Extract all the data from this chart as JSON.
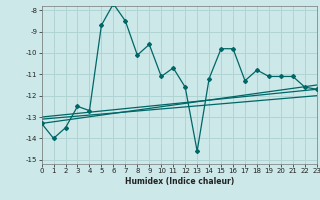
{
  "xlabel": "Humidex (Indice chaleur)",
  "xlim": [
    0,
    23
  ],
  "ylim": [
    -15.2,
    -7.8
  ],
  "yticks": [
    -15,
    -14,
    -13,
    -12,
    -11,
    -10,
    -9,
    -8
  ],
  "xticks": [
    0,
    1,
    2,
    3,
    4,
    5,
    6,
    7,
    8,
    9,
    10,
    11,
    12,
    13,
    14,
    15,
    16,
    17,
    18,
    19,
    20,
    21,
    22,
    23
  ],
  "background_color": "#cce8e8",
  "line_color": "#006666",
  "grid_color": "#b0d4d4",
  "series": [
    [
      0,
      -13.3
    ],
    [
      1,
      -14.0
    ],
    [
      2,
      -13.5
    ],
    [
      3,
      -12.5
    ],
    [
      4,
      -12.7
    ],
    [
      5,
      -8.7
    ],
    [
      6,
      -7.7
    ],
    [
      7,
      -8.5
    ],
    [
      8,
      -10.1
    ],
    [
      9,
      -9.6
    ],
    [
      10,
      -11.1
    ],
    [
      11,
      -10.7
    ],
    [
      12,
      -11.6
    ],
    [
      13,
      -14.6
    ],
    [
      14,
      -11.2
    ],
    [
      15,
      -9.8
    ],
    [
      16,
      -9.8
    ],
    [
      17,
      -11.3
    ],
    [
      18,
      -10.8
    ],
    [
      19,
      -11.1
    ],
    [
      20,
      -11.1
    ],
    [
      21,
      -11.1
    ],
    [
      22,
      -11.6
    ],
    [
      23,
      -11.7
    ]
  ],
  "trend_lines": [
    {
      "x": [
        0,
        23
      ],
      "y": [
        -13.3,
        -11.5
      ]
    },
    {
      "x": [
        0,
        23
      ],
      "y": [
        -13.1,
        -12.0
      ]
    },
    {
      "x": [
        0,
        23
      ],
      "y": [
        -13.0,
        -11.7
      ]
    }
  ]
}
